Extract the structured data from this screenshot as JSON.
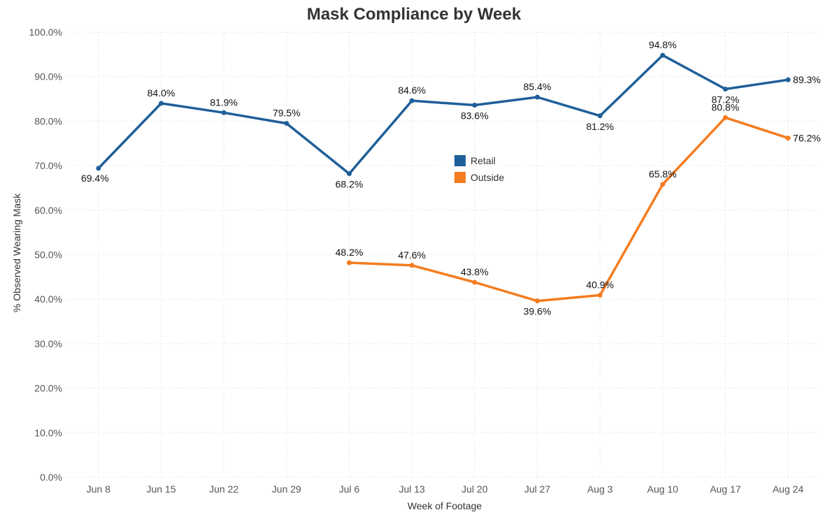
{
  "chart_data": {
    "type": "line",
    "title": "Mask Compliance by Week",
    "xlabel": "Week of Footage",
    "ylabel": "% Observed Wearing Mask",
    "categories": [
      "Jun 8",
      "Jun 15",
      "Jun 22",
      "Jun 29",
      "Jul 6",
      "Jul 13",
      "Jul 20",
      "Jul 27",
      "Aug 3",
      "Aug 10",
      "Aug 17",
      "Aug 24"
    ],
    "ylim": [
      0,
      100
    ],
    "yticks": [
      0,
      10,
      20,
      30,
      40,
      50,
      60,
      70,
      80,
      90,
      100
    ],
    "ytick_labels": [
      "0.0%",
      "10.0%",
      "20.0%",
      "30.0%",
      "40.0%",
      "50.0%",
      "60.0%",
      "70.0%",
      "80.0%",
      "90.0%",
      "100.0%"
    ],
    "grid": true,
    "legend": "center",
    "series": [
      {
        "name": "Retail",
        "color": "#1f5f99",
        "values": [
          69.4,
          84.0,
          81.9,
          79.5,
          68.2,
          84.6,
          83.6,
          85.4,
          81.2,
          94.8,
          87.2,
          89.3
        ],
        "labels": [
          "69.4%",
          "84.0%",
          "81.9%",
          "79.5%",
          "68.2%",
          "84.6%",
          "83.6%",
          "85.4%",
          "81.2%",
          "94.8%",
          "87.2%",
          "89.3%"
        ]
      },
      {
        "name": "Outside",
        "color": "#f57c1f",
        "values": [
          null,
          null,
          null,
          null,
          48.2,
          47.6,
          43.8,
          39.6,
          40.9,
          65.8,
          80.8,
          76.2
        ],
        "labels": [
          null,
          null,
          null,
          null,
          "48.2%",
          "47.6%",
          "43.8%",
          "39.6%",
          "40.9%",
          "65.8%",
          "80.8%",
          "76.2%"
        ]
      }
    ]
  }
}
